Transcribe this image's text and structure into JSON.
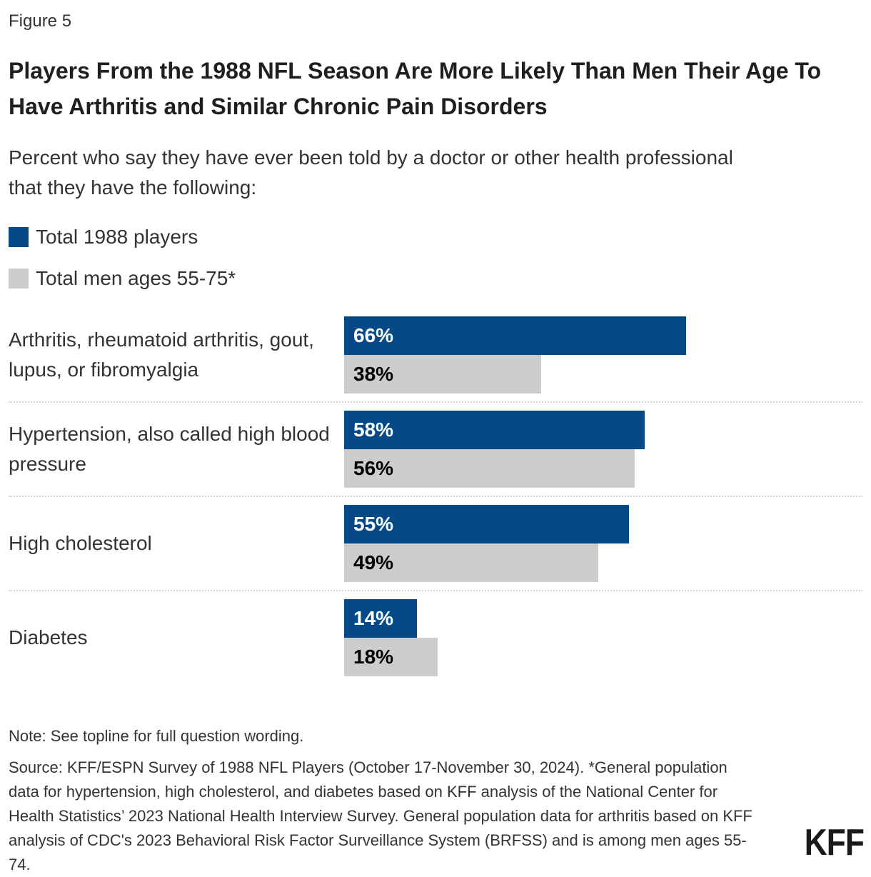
{
  "figure_label": "Figure 5",
  "header": {
    "title": "Players From the 1988 NFL Season Are More Likely Than Men Their Age To Have Arthritis and Similar Chronic Pain Disorders",
    "subtitle": "Percent who say they have ever been told by a doctor or other health professional that they have the following:"
  },
  "chart_data": {
    "type": "bar",
    "orientation": "horizontal",
    "title": "Players From the 1988 NFL Season Are More Likely Than Men Their Age To Have Arthritis and Similar Chronic Pain Disorders",
    "categories": [
      "Arthritis, rheumatoid arthritis, gout, lupus, or fibromyalgia",
      "Hypertension, also called high blood pressure",
      "High cholesterol",
      "Diabetes"
    ],
    "series": [
      {
        "name": "Total 1988 players",
        "color": "#054a87",
        "label_color": "#ffffff",
        "values": [
          66,
          58,
          55,
          14
        ]
      },
      {
        "name": "Total men ages 55-75*",
        "color": "#cdcdcd",
        "label_color": "#000000",
        "values": [
          38,
          56,
          49,
          18
        ]
      }
    ],
    "value_suffix": "%",
    "xlim": [
      0,
      100
    ],
    "grid": false,
    "legend_position": "top-left"
  },
  "footer": {
    "note": "Note: See topline for full question wording.",
    "source": "Source: KFF/ESPN Survey of 1988 NFL Players (October 17-November 30, 2024). *General population data for hypertension, high cholesterol, and diabetes based on KFF analysis of the National Center for Health Statistics’ 2023 National Health Interview Survey. General population data for arthritis based on KFF analysis of CDC's 2023 Behavioral Risk Factor Surveillance System (BRFSS) and is among men ages 55-74.",
    "logo_text": "KFF"
  }
}
